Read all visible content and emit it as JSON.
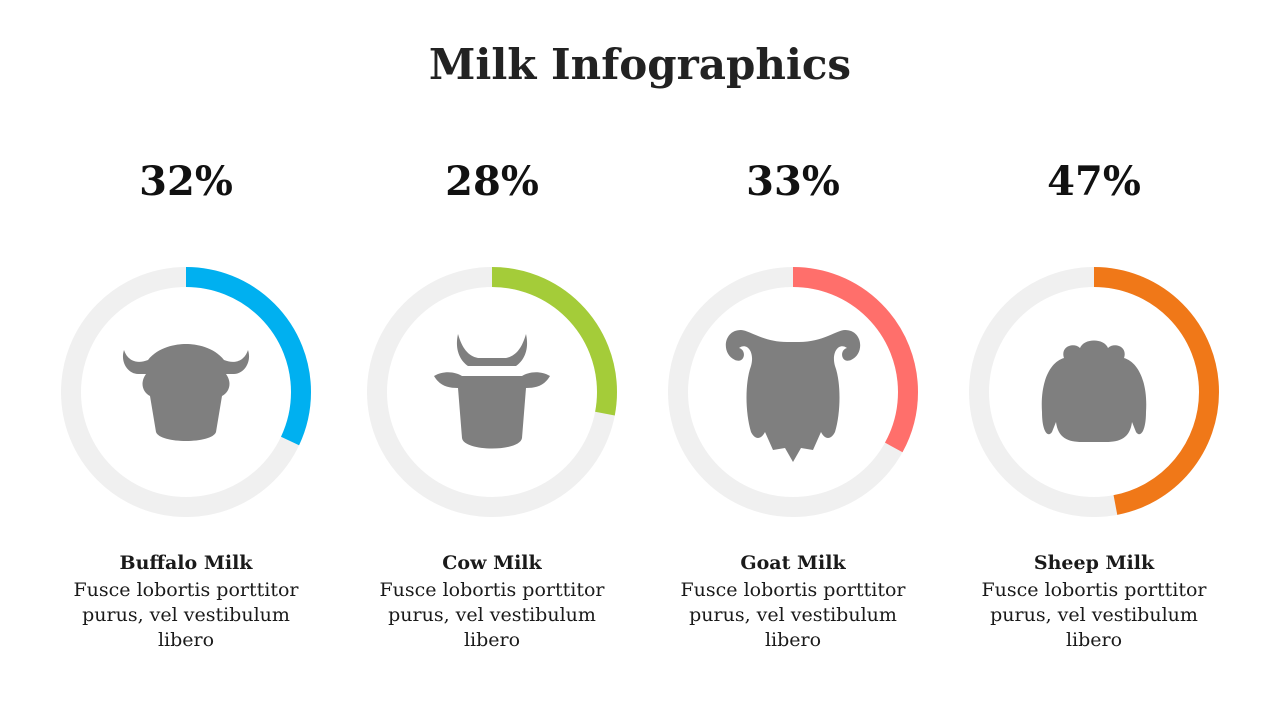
{
  "title": "Milk Infographics",
  "items": [
    {
      "value": 32,
      "value_label": "32%",
      "color": "#00b0f0",
      "label": "Buffalo Milk",
      "description": "Fusce lobortis porttitor purus, vel vestibulum libero"
    },
    {
      "value": 28,
      "value_label": "28%",
      "color": "#a4cc39",
      "label": "Cow Milk",
      "description": "Fusce lobortis porttitor purus, vel vestibulum libero"
    },
    {
      "value": 33,
      "value_label": "33%",
      "color": "#ff6f6b",
      "label": "Goat Milk",
      "description": "Fusce lobortis porttitor purus, vel vestibulum libero"
    },
    {
      "value": 47,
      "value_label": "47%",
      "color": "#f07818",
      "label": "Sheep Milk",
      "description": "Fusce lobortis porttitor purus, vel vestibulum libero"
    }
  ]
}
